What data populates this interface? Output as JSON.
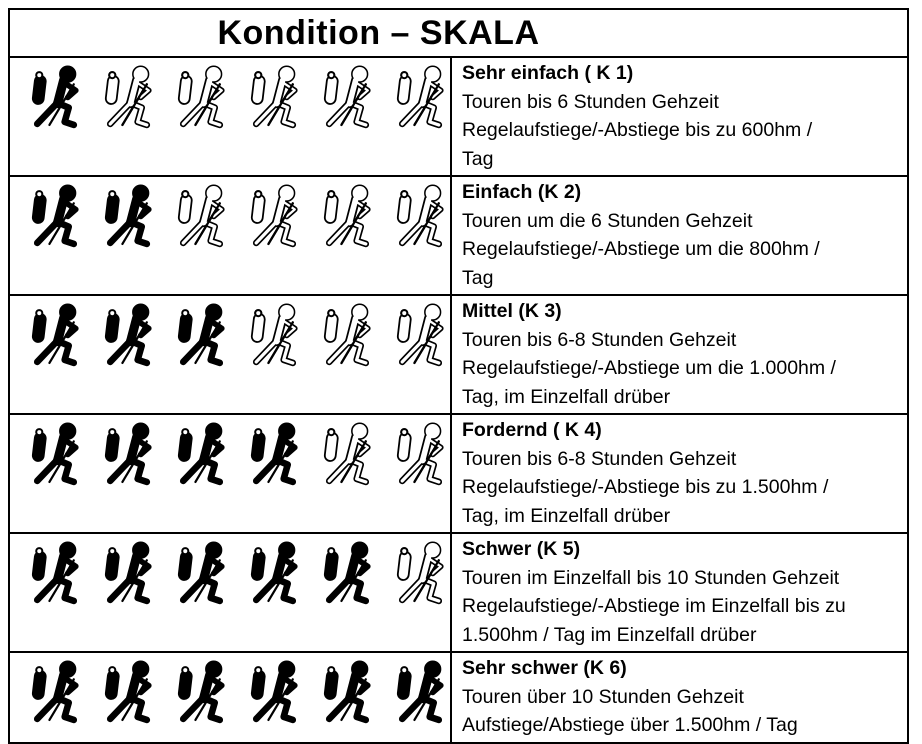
{
  "title": "Kondition – SKALA",
  "colors": {
    "border": "#000000",
    "background": "#ffffff",
    "text": "#000000",
    "icon_filled": "#000000",
    "icon_outline": "#000000"
  },
  "scale": {
    "total_icons_per_row": 6,
    "icon_name": "hiker-icon",
    "levels": [
      {
        "id": "K1",
        "name": "Sehr einfach ( K 1)",
        "filled_icons": 1,
        "outline_icons": 5,
        "lines": [
          "Touren bis 6 Stunden Gehzeit",
          "Regelaufstiege/-Abstiege bis zu 600hm /",
          "Tag"
        ]
      },
      {
        "id": "K2",
        "name": "Einfach (K 2)",
        "filled_icons": 2,
        "outline_icons": 4,
        "lines": [
          "Touren um die 6 Stunden Gehzeit",
          "Regelaufstiege/-Abstiege um die 800hm /",
          "Tag"
        ]
      },
      {
        "id": "K3",
        "name": "Mittel (K 3)",
        "filled_icons": 3,
        "outline_icons": 3,
        "lines": [
          "Touren bis 6-8 Stunden Gehzeit",
          "Regelaufstiege/-Abstiege um die 1.000hm /",
          "Tag, im Einzelfall drüber"
        ]
      },
      {
        "id": "K4",
        "name": "Fordernd ( K 4)",
        "filled_icons": 4,
        "outline_icons": 2,
        "lines": [
          "Touren bis 6-8 Stunden Gehzeit",
          "Regelaufstiege/-Abstiege bis zu 1.500hm /",
          "Tag, im Einzelfall drüber"
        ]
      },
      {
        "id": "K5",
        "name": "Schwer (K 5)",
        "filled_icons": 5,
        "outline_icons": 1,
        "lines": [
          "Touren im Einzelfall bis 10 Stunden Gehzeit",
          "Regelaufstiege/-Abstiege im Einzelfall bis zu",
          "1.500hm / Tag im Einzelfall drüber"
        ]
      },
      {
        "id": "K6",
        "name": "Sehr schwer (K 6)",
        "filled_icons": 6,
        "outline_icons": 0,
        "lines": [
          "Touren über 10 Stunden Gehzeit",
          "Aufstiege/Abstiege über 1.500hm / Tag"
        ]
      }
    ]
  }
}
